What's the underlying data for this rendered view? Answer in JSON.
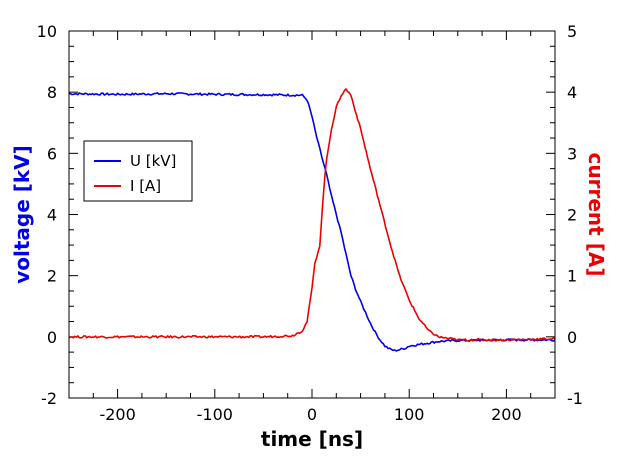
{
  "chart_data": {
    "type": "line",
    "title": "",
    "xlabel": "time [ns]",
    "ylabel_left": "voltage [kV]",
    "ylabel_right": "current [A]",
    "xlim": [
      -250,
      250
    ],
    "ylim_left": [
      -2,
      10
    ],
    "ylim_right": [
      -1,
      5
    ],
    "x_ticks": [
      -200,
      -100,
      0,
      100,
      200
    ],
    "x_tick_labels": [
      "-200",
      "-100",
      "0",
      "100",
      "200"
    ],
    "y_left_ticks": [
      -2,
      0,
      2,
      4,
      6,
      8,
      10
    ],
    "y_left_tick_labels": [
      "-2",
      "0",
      "2",
      "4",
      "6",
      "8",
      "10"
    ],
    "y_right_ticks": [
      -1,
      0,
      1,
      2,
      3,
      4,
      5
    ],
    "y_right_tick_labels": [
      "-1",
      "0",
      "1",
      "2",
      "3",
      "4",
      "5"
    ],
    "grid": false,
    "legend_position": "center-left",
    "series": [
      {
        "name": "U [kV]",
        "axis": "left",
        "color": "#0000ee",
        "x": [
          -250,
          -200,
          -150,
          -100,
          -50,
          -10,
          -5,
          0,
          5,
          10,
          15,
          20,
          25,
          30,
          35,
          40,
          45,
          50,
          55,
          60,
          65,
          70,
          75,
          80,
          85,
          90,
          95,
          100,
          110,
          120,
          130,
          150,
          200,
          250
        ],
        "y": [
          7.95,
          7.93,
          7.95,
          7.93,
          7.92,
          7.9,
          7.75,
          7.2,
          6.5,
          5.9,
          5.3,
          4.6,
          4.0,
          3.4,
          2.7,
          2.0,
          1.55,
          1.15,
          0.8,
          0.45,
          0.15,
          -0.1,
          -0.3,
          -0.4,
          -0.45,
          -0.42,
          -0.38,
          -0.3,
          -0.25,
          -0.2,
          -0.15,
          -0.12,
          -0.1,
          -0.1
        ]
      },
      {
        "name": "I [A]",
        "axis": "right",
        "color": "#ee0000",
        "x": [
          -250,
          -200,
          -150,
          -100,
          -50,
          -20,
          -10,
          -5,
          0,
          3,
          8,
          12,
          15,
          20,
          25,
          30,
          35,
          40,
          50,
          60,
          70,
          80,
          90,
          100,
          110,
          120,
          130,
          150,
          200,
          250
        ],
        "y": [
          0.0,
          0.0,
          0.0,
          0.0,
          0.0,
          0.02,
          0.1,
          0.25,
          0.8,
          1.2,
          1.5,
          2.4,
          2.9,
          3.4,
          3.75,
          3.95,
          4.05,
          3.95,
          3.4,
          2.75,
          2.15,
          1.55,
          1.0,
          0.6,
          0.3,
          0.1,
          0.0,
          -0.05,
          -0.05,
          -0.03
        ]
      }
    ],
    "colors": {
      "left_axis_title": "#0000ee",
      "right_axis_title": "#ee0000",
      "axes": "#000000"
    }
  }
}
